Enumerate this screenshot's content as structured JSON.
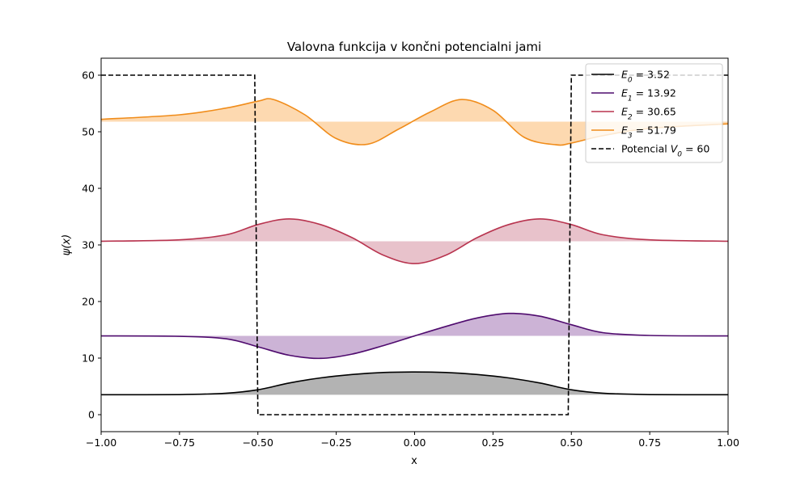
{
  "chart_data": {
    "type": "line",
    "title": "Valovna funkcija v končni potencialni jami",
    "xlabel": "x",
    "ylabel": "ψ(x)",
    "xlim": [
      -1.0,
      1.0
    ],
    "ylim": [
      -3,
      63
    ],
    "xticks": [
      -1.0,
      -0.75,
      -0.5,
      -0.25,
      0.0,
      0.25,
      0.5,
      0.75,
      1.0
    ],
    "xtick_labels": [
      "−1.00",
      "−0.75",
      "−0.50",
      "−0.25",
      "0.00",
      "0.25",
      "0.50",
      "0.75",
      "1.00"
    ],
    "yticks": [
      0,
      10,
      20,
      30,
      40,
      50,
      60
    ],
    "yticks_labels": [
      "0",
      "10",
      "20",
      "30",
      "40",
      "50",
      "60"
    ],
    "grid": false,
    "legend_position": "top-right",
    "potential": {
      "legend_main": "Potencial ",
      "legend_sym": "V",
      "legend_sub": "0",
      "legend_val": " = 60",
      "color": "#000000",
      "dash": "dashed",
      "points": [
        [
          -1.0,
          60
        ],
        [
          -0.51,
          60
        ],
        [
          -0.5,
          0
        ],
        [
          0.49,
          0
        ],
        [
          0.5,
          60
        ],
        [
          1.0,
          60
        ]
      ]
    },
    "series": [
      {
        "sym": "E",
        "sub": "0",
        "val": " = 3.52",
        "energy": 3.52,
        "color": "#000000",
        "fill": "#b3b3b3",
        "x": [
          -1.0,
          -0.75,
          -0.6,
          -0.5,
          -0.4,
          -0.3,
          -0.2,
          -0.1,
          0.0,
          0.1,
          0.2,
          0.3,
          0.4,
          0.5,
          0.6,
          0.75,
          1.0
        ],
        "y": [
          3.52,
          3.55,
          3.8,
          4.4,
          5.6,
          6.5,
          7.1,
          7.45,
          7.55,
          7.45,
          7.1,
          6.5,
          5.6,
          4.4,
          3.8,
          3.55,
          3.52
        ]
      },
      {
        "sym": "E",
        "sub": "1",
        "val": " = 13.92",
        "energy": 13.92,
        "color": "#4f0b6e",
        "fill": "#ccb3d6",
        "x": [
          -1.0,
          -0.75,
          -0.6,
          -0.5,
          -0.4,
          -0.3,
          -0.2,
          -0.1,
          0.0,
          0.1,
          0.2,
          0.3,
          0.4,
          0.5,
          0.6,
          0.75,
          1.0
        ],
        "y": [
          13.92,
          13.85,
          13.4,
          12.0,
          10.5,
          9.95,
          10.7,
          12.2,
          13.92,
          15.6,
          17.1,
          17.9,
          17.4,
          15.9,
          14.5,
          14.0,
          13.92
        ]
      },
      {
        "sym": "E",
        "sub": "2",
        "val": " = 30.65",
        "energy": 30.65,
        "color": "#b8344f",
        "fill": "#e8c2cb",
        "x": [
          -1.0,
          -0.75,
          -0.6,
          -0.5,
          -0.4,
          -0.3,
          -0.2,
          -0.1,
          0.0,
          0.1,
          0.2,
          0.3,
          0.4,
          0.5,
          0.6,
          0.75,
          1.0
        ],
        "y": [
          30.65,
          30.9,
          31.8,
          33.6,
          34.6,
          33.6,
          31.3,
          28.2,
          26.7,
          28.2,
          31.3,
          33.6,
          34.6,
          33.6,
          31.8,
          30.9,
          30.65
        ]
      },
      {
        "sym": "E",
        "sub": "3",
        "val": " = 51.79",
        "energy": 51.79,
        "color": "#f08c1a",
        "fill": "#fdd9b0",
        "x": [
          -1.0,
          -0.75,
          -0.6,
          -0.5,
          -0.45,
          -0.35,
          -0.25,
          -0.15,
          -0.05,
          0.05,
          0.15,
          0.25,
          0.35,
          0.45,
          0.5,
          0.6,
          0.75,
          1.0
        ],
        "y": [
          52.2,
          53.0,
          54.2,
          55.4,
          55.7,
          53.0,
          48.8,
          47.8,
          50.5,
          53.5,
          55.7,
          53.8,
          49.0,
          47.7,
          48.0,
          49.3,
          50.6,
          51.4
        ]
      }
    ]
  }
}
